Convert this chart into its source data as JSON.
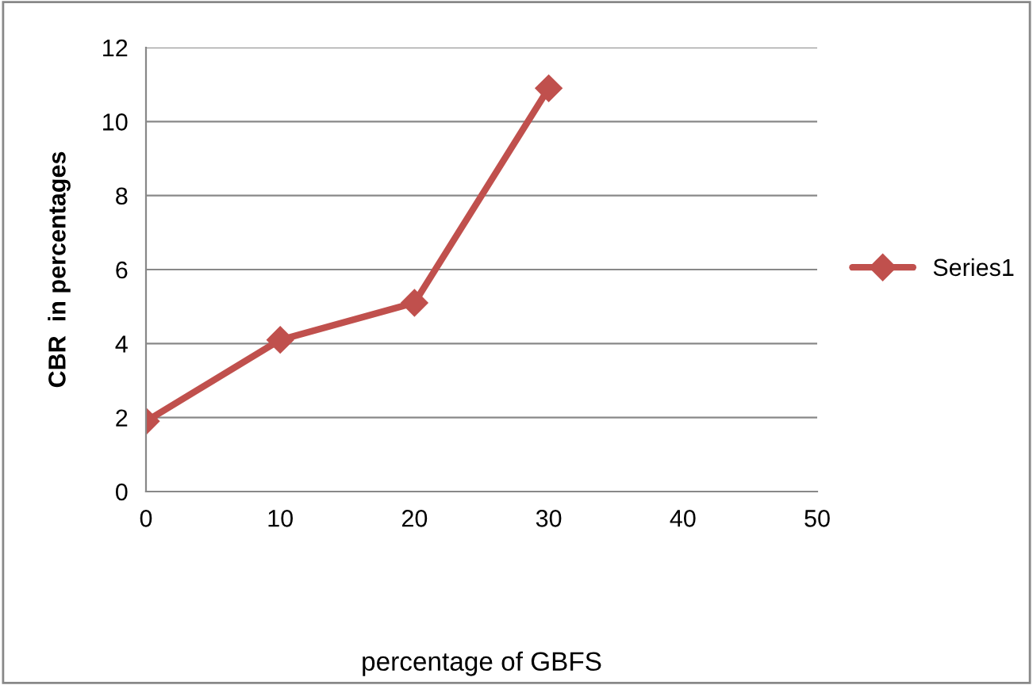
{
  "chart_data": {
    "type": "line",
    "xlabel": "percentage of GBFS",
    "ylabel": "CBR  in percentages",
    "x": [
      0,
      10,
      20,
      30
    ],
    "series": [
      {
        "name": "Series1",
        "color": "#c0504d",
        "values": [
          1.9,
          4.1,
          5.1,
          10.9
        ]
      }
    ],
    "xlim": [
      0,
      50
    ],
    "xticks": [
      0,
      10,
      20,
      30,
      40,
      50
    ],
    "ylim": [
      0,
      12
    ],
    "yticks": [
      0,
      2,
      4,
      6,
      8,
      10,
      12
    ],
    "grid": "y",
    "legend": "right",
    "marker": "diamond",
    "line_style": "solid"
  }
}
